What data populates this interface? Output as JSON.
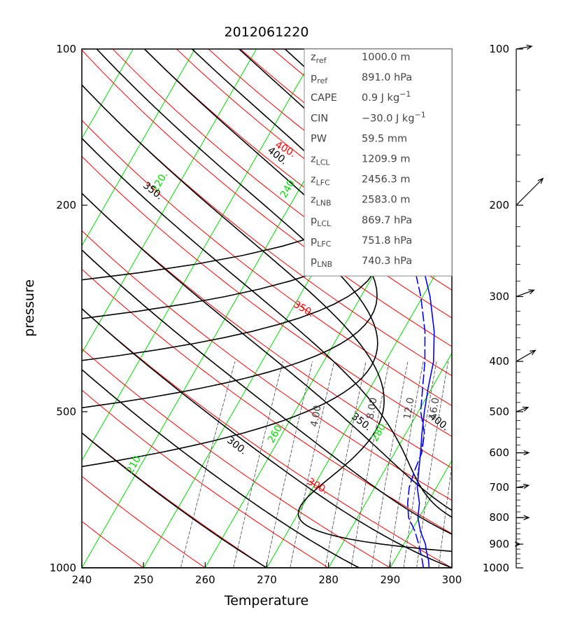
{
  "chart_data": {
    "type": "skew-t",
    "title": "2012061220",
    "xlabel": "Temperature",
    "ylabel": "pressure",
    "x_ticks": [
      "240",
      "250",
      "260",
      "270",
      "280",
      "290",
      "300"
    ],
    "y_ticks": [
      "100",
      "200",
      "500",
      "1000"
    ],
    "xlim": [
      240,
      300
    ],
    "ylim": [
      1000,
      100
    ],
    "y_scale": "log",
    "info_box": [
      {
        "name": "z",
        "sub": "ref",
        "value": "1000.0 m"
      },
      {
        "name": "p",
        "sub": "ref",
        "value": "891.0 hPa"
      },
      {
        "name": "CAPE",
        "sub": "",
        "value": "0.9 J kg",
        "sup": "−1"
      },
      {
        "name": "CIN",
        "sub": "",
        "value": "−30.0 J kg",
        "sup": "−1"
      },
      {
        "name": "PW",
        "sub": "",
        "value": "59.5 mm"
      },
      {
        "name": "z",
        "sub": "LCL",
        "value": "1209.9 m"
      },
      {
        "name": "z",
        "sub": "LFC",
        "value": "2456.3 m"
      },
      {
        "name": "z",
        "sub": "LNB",
        "value": "2583.0 m"
      },
      {
        "name": "p",
        "sub": "LCL",
        "value": "869.7 hPa"
      },
      {
        "name": "p",
        "sub": "LFC",
        "value": "751.8 hPa"
      },
      {
        "name": "p",
        "sub": "LNB",
        "value": "740.3 hPa"
      }
    ],
    "isotherm_labels": [
      {
        "text": "220.",
        "T": 220,
        "p": 200
      },
      {
        "text": "240.",
        "T": 240,
        "p": 195
      },
      {
        "text": "260.",
        "T": 260,
        "p": 570
      },
      {
        "text": "280.",
        "T": 280,
        "p": 570
      },
      {
        "text": "210.",
        "T": 210,
        "p": 650
      }
    ],
    "dry_adiabat_labels": [
      {
        "text": "400.",
        "p": 165
      },
      {
        "text": "350.",
        "p": 335
      },
      {
        "text": "300.",
        "p": 710
      }
    ],
    "moist_adiabat_labels": [
      {
        "text": "400.",
        "p": 175
      },
      {
        "text": "350.",
        "p": 195
      },
      {
        "text": "300.",
        "p": 640
      },
      {
        "text": "350.",
        "p": 545
      },
      {
        "text": "400.",
        "p": 530
      }
    ],
    "mixing_ratio_labels": [
      "4.00",
      "8.00",
      "12.0",
      "16.0"
    ],
    "temperature_profile": [
      [
        1000,
        296.3
      ],
      [
        970,
        295.6
      ],
      [
        925,
        294.2
      ],
      [
        900,
        293.5
      ],
      [
        850,
        291.5
      ],
      [
        800,
        289.8
      ],
      [
        750,
        288.7
      ],
      [
        700,
        286.9
      ],
      [
        650,
        285.6
      ],
      [
        600,
        284.2
      ],
      [
        550,
        282.6
      ],
      [
        500,
        281.0
      ],
      [
        450,
        279.4
      ],
      [
        400,
        277.8
      ],
      [
        350,
        275.1
      ],
      [
        300,
        271.2
      ],
      [
        250,
        265.8
      ],
      [
        200,
        259.2
      ],
      [
        175,
        255.0
      ],
      [
        150,
        250.9
      ],
      [
        125,
        246.4
      ],
      [
        115,
        243.9
      ],
      [
        105,
        242.3
      ],
      [
        100,
        241.6
      ]
    ],
    "dewpoint_profile": [
      [
        1000,
        295.4
      ],
      [
        950,
        294.0
      ],
      [
        900,
        292.4
      ],
      [
        850,
        290.6
      ],
      [
        800,
        288.3
      ],
      [
        750,
        286.8
      ],
      [
        700,
        285.6
      ],
      [
        650,
        284.9
      ],
      [
        600,
        284.4
      ],
      [
        550,
        283.0
      ],
      [
        500,
        280.4
      ],
      [
        450,
        278.5
      ],
      [
        400,
        276.4
      ],
      [
        350,
        273.6
      ],
      [
        300,
        269.7
      ],
      [
        250,
        264.4
      ],
      [
        200,
        256.5
      ],
      [
        175,
        252.1
      ],
      [
        160,
        249.0
      ],
      [
        150,
        246.7
      ],
      [
        140,
        244.9
      ]
    ],
    "wind_profile": [
      {
        "p": 100,
        "label": "100",
        "dir_deg": 80,
        "speed": 25
      },
      {
        "p": 200,
        "label": "200",
        "dir_deg": 45,
        "speed": 60
      },
      {
        "p": 300,
        "label": "300",
        "dir_deg": 70,
        "speed": 30
      },
      {
        "p": 400,
        "label": "400",
        "dir_deg": 60,
        "speed": 35
      },
      {
        "p": 500,
        "label": "500",
        "dir_deg": 70,
        "speed": 20
      },
      {
        "p": 600,
        "label": "600",
        "dir_deg": 90,
        "speed": 20
      },
      {
        "p": 700,
        "label": "700",
        "dir_deg": 80,
        "speed": 20
      },
      {
        "p": 800,
        "label": "800",
        "dir_deg": 90,
        "speed": 20
      },
      {
        "p": 900,
        "label": "900",
        "dir_deg": 90,
        "speed": 6
      },
      {
        "p": 1000,
        "label": "1000",
        "dir_deg": 90,
        "speed": 0
      }
    ],
    "colors": {
      "temperature": "#0000ff",
      "isotherms": "#00dd00",
      "dry_adiabats": "#ff0000",
      "moist_adiabats": "#000000",
      "mixing_ratio": "#444444"
    }
  }
}
